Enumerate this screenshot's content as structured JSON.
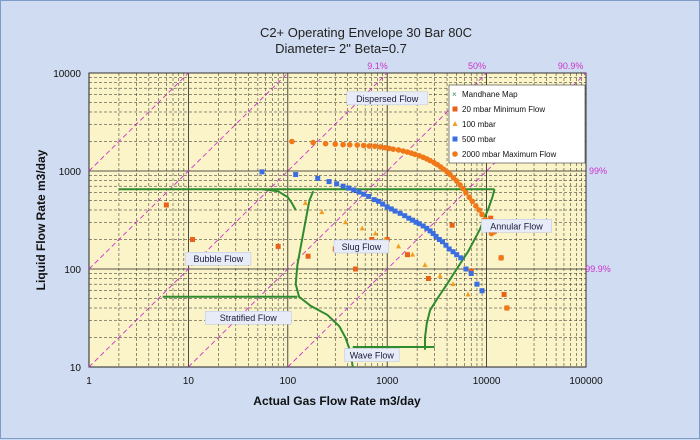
{
  "chart_data": {
    "type": "scatter",
    "title_line1": "C2+ Operating Envelope  30 Bar 80C",
    "title_line2": "Diameter= 2\"   Beta=0.7",
    "xlabel": "Actual Gas Flow Rate m3/day",
    "ylabel": "Liquid Flow Rate m3/day",
    "x_scale": "log",
    "y_scale": "log",
    "xlim": [
      1,
      100000
    ],
    "ylim": [
      10,
      10000
    ],
    "x_ticks": [
      "1",
      "10",
      "100",
      "1000",
      "10000",
      "100000"
    ],
    "y_ticks": [
      "10",
      "100",
      "1000",
      "10000"
    ],
    "grid": true,
    "legend_position": "top-right",
    "legend": [
      {
        "label": "Mandhane Map",
        "color": "#2e8b57",
        "marker": "x"
      },
      {
        "label": "20 mbar    Minimum Flow",
        "color": "#e8621a",
        "marker": "square"
      },
      {
        "label": "100 mbar",
        "color": "#f0a020",
        "marker": "triangle"
      },
      {
        "label": "500 mbar",
        "color": "#3a6ee0",
        "marker": "square"
      },
      {
        "label": "2000 mbar    Maximum Flow",
        "color": "#f07818",
        "marker": "circle"
      }
    ],
    "regions": [
      {
        "label": "Dispersed Flow",
        "x": 1000,
        "y": 5200
      },
      {
        "label": "Bubble Flow",
        "x": 20,
        "y": 120
      },
      {
        "label": "Slug Flow",
        "x": 550,
        "y": 160
      },
      {
        "label": "Annular Flow",
        "x": 20000,
        "y": 260
      },
      {
        "label": "Stratified Flow",
        "x": 40,
        "y": 30
      },
      {
        "label": "Wave Flow",
        "x": 700,
        "y": 12.5
      }
    ],
    "percent_labels": [
      {
        "label": "9.1%",
        "x": 800,
        "y": 10000
      },
      {
        "label": "50%",
        "x": 8000,
        "y": 10000
      },
      {
        "label": "90.9%",
        "x": 70000,
        "y": 10000
      },
      {
        "label": "99%",
        "x": 150000,
        "y": 1000
      },
      {
        "label": "99.9%",
        "x": 150000,
        "y": 100
      }
    ],
    "mandhane_lines": [
      {
        "name": "upper",
        "points": [
          [
            2,
            650
          ],
          [
            12000,
            650
          ]
        ]
      },
      {
        "name": "right-upper",
        "points": [
          [
            12000,
            650
          ],
          [
            11500,
            550
          ],
          [
            10500,
            420
          ],
          [
            8500,
            250
          ],
          [
            6500,
            150
          ],
          [
            5000,
            100
          ],
          [
            4000,
            70
          ],
          [
            3200,
            50
          ],
          [
            2700,
            38
          ],
          [
            2500,
            28
          ],
          [
            2400,
            20
          ],
          [
            2400,
            15
          ]
        ]
      },
      {
        "name": "wave-top",
        "points": [
          [
            450,
            16
          ],
          [
            3000,
            16
          ]
        ]
      },
      {
        "name": "left-boundary",
        "points": [
          [
            180,
            620
          ],
          [
            165,
            500
          ],
          [
            150,
            300
          ],
          [
            135,
            170
          ],
          [
            125,
            110
          ],
          [
            120,
            70
          ],
          [
            130,
            52
          ],
          [
            170,
            42
          ],
          [
            250,
            34
          ],
          [
            330,
            26
          ],
          [
            380,
            20
          ],
          [
            430,
            14
          ],
          [
            450,
            10
          ]
        ]
      },
      {
        "name": "bubble-stratified",
        "points": [
          [
            5.5,
            52
          ],
          [
            125,
            52
          ]
        ]
      },
      {
        "name": "dispersed-left",
        "points": [
          [
            55,
            650
          ],
          [
            80,
            620
          ],
          [
            100,
            540
          ],
          [
            110,
            470
          ],
          [
            120,
            400
          ]
        ]
      }
    ],
    "series": [
      {
        "name": "20 mbar    Minimum Flow",
        "marker": "square",
        "color": "#e8621a",
        "points": [
          [
            6,
            450
          ],
          [
            11,
            200
          ],
          [
            80,
            170
          ],
          [
            160,
            135
          ],
          [
            300,
            160
          ],
          [
            480,
            100
          ],
          [
            700,
            200
          ],
          [
            1000,
            200
          ],
          [
            1600,
            140
          ],
          [
            2600,
            80
          ],
          [
            4500,
            280
          ],
          [
            7000,
            95
          ],
          [
            11000,
            330
          ],
          [
            14000,
            130
          ],
          [
            15000,
            55
          ],
          [
            16000,
            40
          ]
        ]
      },
      {
        "name": "100 mbar",
        "marker": "triangle",
        "color": "#f0a020",
        "points": [
          [
            150,
            470
          ],
          [
            220,
            380
          ],
          [
            380,
            300
          ],
          [
            560,
            260
          ],
          [
            760,
            230
          ],
          [
            950,
            200
          ],
          [
            1300,
            170
          ],
          [
            1800,
            140
          ],
          [
            2400,
            110
          ],
          [
            3400,
            85
          ],
          [
            4600,
            70
          ],
          [
            6500,
            55
          ]
        ]
      },
      {
        "name": "500 mbar",
        "marker": "square",
        "color": "#3a6ee0",
        "points": [
          [
            55,
            980
          ],
          [
            120,
            920
          ],
          [
            200,
            840
          ],
          [
            260,
            780
          ],
          [
            310,
            740
          ],
          [
            360,
            700
          ],
          [
            410,
            670
          ],
          [
            460,
            640
          ],
          [
            520,
            610
          ],
          [
            580,
            580
          ],
          [
            650,
            550
          ],
          [
            740,
            510
          ],
          [
            820,
            490
          ],
          [
            900,
            460
          ],
          [
            1000,
            430
          ],
          [
            1100,
            410
          ],
          [
            1200,
            390
          ],
          [
            1350,
            370
          ],
          [
            1500,
            350
          ],
          [
            1650,
            330
          ],
          [
            1800,
            315
          ],
          [
            1950,
            300
          ],
          [
            2100,
            290
          ],
          [
            2300,
            275
          ],
          [
            2500,
            260
          ],
          [
            2700,
            245
          ],
          [
            2900,
            230
          ],
          [
            3100,
            215
          ],
          [
            3350,
            200
          ],
          [
            3600,
            190
          ],
          [
            3900,
            175
          ],
          [
            4200,
            160
          ],
          [
            4600,
            150
          ],
          [
            5000,
            140
          ],
          [
            5500,
            130
          ],
          [
            6200,
            100
          ],
          [
            7000,
            90
          ],
          [
            8000,
            70
          ],
          [
            9000,
            60
          ]
        ]
      },
      {
        "name": "2000 mbar    Maximum Flow",
        "marker": "circle",
        "color": "#f07818",
        "points": [
          [
            110,
            2000
          ],
          [
            180,
            1950
          ],
          [
            240,
            1900
          ],
          [
            300,
            1880
          ],
          [
            360,
            1860
          ],
          [
            420,
            1850
          ],
          [
            500,
            1840
          ],
          [
            580,
            1820
          ],
          [
            660,
            1800
          ],
          [
            750,
            1790
          ],
          [
            850,
            1760
          ],
          [
            950,
            1730
          ],
          [
            1050,
            1700
          ],
          [
            1150,
            1670
          ],
          [
            1300,
            1640
          ],
          [
            1450,
            1600
          ],
          [
            1600,
            1560
          ],
          [
            1750,
            1520
          ],
          [
            1900,
            1480
          ],
          [
            2100,
            1430
          ],
          [
            2300,
            1380
          ],
          [
            2500,
            1330
          ],
          [
            2700,
            1280
          ],
          [
            2950,
            1220
          ],
          [
            3200,
            1160
          ],
          [
            3450,
            1100
          ],
          [
            3700,
            1040
          ],
          [
            4000,
            980
          ],
          [
            4300,
            920
          ],
          [
            4650,
            850
          ],
          [
            5000,
            790
          ],
          [
            5400,
            720
          ],
          [
            5800,
            660
          ],
          [
            6200,
            600
          ],
          [
            6700,
            540
          ],
          [
            7200,
            490
          ],
          [
            7800,
            440
          ],
          [
            8400,
            400
          ],
          [
            9000,
            360
          ],
          [
            9700,
            320
          ],
          [
            10500,
            280
          ],
          [
            11200,
            230
          ],
          [
            12000,
            240
          ],
          [
            14000,
            130
          ],
          [
            16000,
            40
          ]
        ]
      }
    ]
  }
}
